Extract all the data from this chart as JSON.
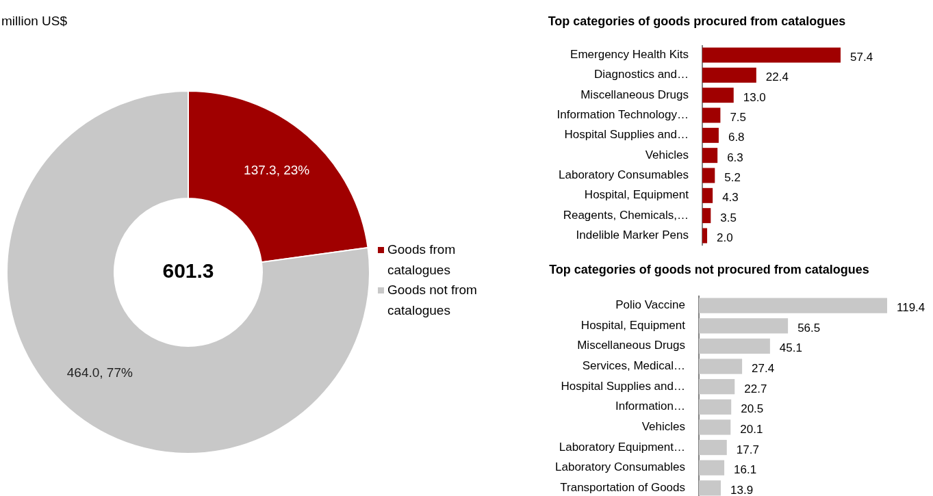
{
  "chart_data": [
    {
      "type": "donut",
      "annotations": [
        "million US$",
        "601.3"
      ],
      "categories": [
        "Goods from catalogues",
        "Goods not from catalogues"
      ],
      "values": [
        137.3,
        464.0
      ],
      "colors": [
        "#a00000",
        "#c8c8c8"
      ],
      "value_labels": [
        "137.3, 23%",
        "464.0, 77%"
      ],
      "legend": "right"
    },
    {
      "type": "bar",
      "orientation": "horizontal",
      "title": "Top categories of goods procured from catalogues",
      "categories": [
        "Emergency Health Kits",
        "Diagnostics and…",
        "Miscellaneous Drugs",
        "Information Technology…",
        "Hospital Supplies and…",
        "Vehicles",
        "Laboratory Consumables",
        "Hospital, Equipment",
        "Reagents, Chemicals,…",
        "Indelible Marker Pens"
      ],
      "values": [
        57.4,
        22.4,
        13.0,
        7.5,
        6.8,
        6.3,
        5.2,
        4.3,
        3.5,
        2.0
      ],
      "color": "#a00000",
      "value_labels": [
        "57.4",
        "22.4",
        "13.0",
        "7.5",
        "6.8",
        "6.3",
        "5.2",
        "4.3",
        "3.5",
        "2.0"
      ]
    },
    {
      "type": "bar",
      "orientation": "horizontal",
      "title": "Top categories of goods not procured from catalogues",
      "categories": [
        "Polio Vaccine",
        "Hospital, Equipment",
        "Miscellaneous Drugs",
        "Services, Medical…",
        "Hospital Supplies and…",
        "Information…",
        "Vehicles",
        "Laboratory Equipment…",
        "Laboratory Consumables",
        "Transportation of Goods"
      ],
      "values": [
        119.4,
        56.5,
        45.1,
        27.4,
        22.7,
        20.5,
        20.1,
        17.7,
        16.1,
        13.9
      ],
      "color": "#c8c8c8",
      "value_labels": [
        "119.4",
        "56.5",
        "45.1",
        "27.4",
        "22.7",
        "20.5",
        "20.1",
        "17.7",
        "16.1",
        "13.9"
      ]
    }
  ]
}
